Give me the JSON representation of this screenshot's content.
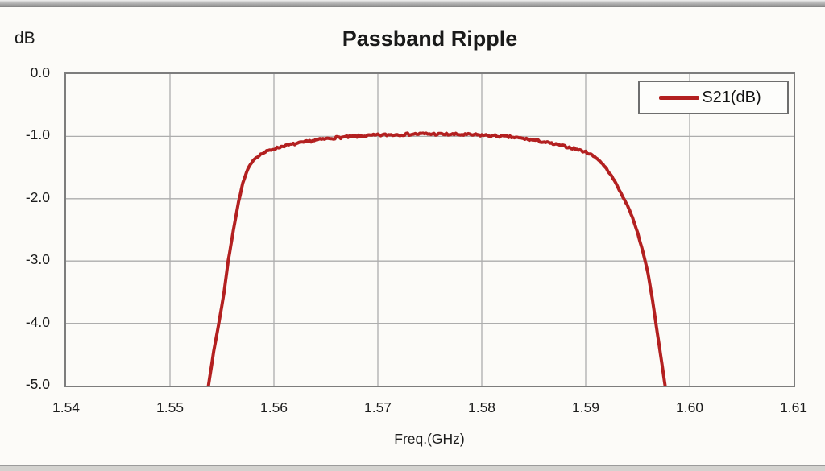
{
  "page": {
    "background": "#fcfbf8",
    "text_color": "#1f1f1f"
  },
  "chart_data": {
    "type": "line",
    "title": "Passband Ripple",
    "xlabel": "Freq.(GHz)",
    "ylabel": "dB",
    "xlim": [
      1.54,
      1.61
    ],
    "ylim": [
      -5.0,
      0.0
    ],
    "x_ticks": [
      "1.54",
      "1.55",
      "1.56",
      "1.57",
      "1.58",
      "1.59",
      "1.60",
      "1.61"
    ],
    "y_ticks": [
      "0.0",
      "-1.0",
      "-2.0",
      "-3.0",
      "-4.0",
      "-5.0"
    ],
    "grid": true,
    "grid_color": "#adadad",
    "plot_border_color": "#7d7d7d",
    "legend": {
      "position": "top-right",
      "entries": [
        {
          "label": "S21(dB)",
          "color": "#b32020"
        }
      ]
    },
    "series": [
      {
        "name": "S21(dB)",
        "color": "#b32020",
        "line_width": 4,
        "noise_db": 0.02,
        "points": [
          [
            1.5531,
            -5.6
          ],
          [
            1.5537,
            -5.0
          ],
          [
            1.5542,
            -4.45
          ],
          [
            1.5547,
            -4.0
          ],
          [
            1.5552,
            -3.5
          ],
          [
            1.5556,
            -3.0
          ],
          [
            1.5561,
            -2.5
          ],
          [
            1.5566,
            -2.05
          ],
          [
            1.557,
            -1.75
          ],
          [
            1.5575,
            -1.52
          ],
          [
            1.558,
            -1.38
          ],
          [
            1.5586,
            -1.3
          ],
          [
            1.5593,
            -1.24
          ],
          [
            1.56,
            -1.2
          ],
          [
            1.561,
            -1.15
          ],
          [
            1.562,
            -1.12
          ],
          [
            1.563,
            -1.09
          ],
          [
            1.564,
            -1.06
          ],
          [
            1.565,
            -1.04
          ],
          [
            1.566,
            -1.02
          ],
          [
            1.567,
            -1.01
          ],
          [
            1.568,
            -1.0
          ],
          [
            1.569,
            -0.99
          ],
          [
            1.57,
            -0.98
          ],
          [
            1.571,
            -0.975
          ],
          [
            1.572,
            -0.97
          ],
          [
            1.573,
            -0.965
          ],
          [
            1.5745,
            -0.96
          ],
          [
            1.576,
            -0.965
          ],
          [
            1.5775,
            -0.97
          ],
          [
            1.579,
            -0.975
          ],
          [
            1.58,
            -0.98
          ],
          [
            1.581,
            -0.99
          ],
          [
            1.582,
            -1.0
          ],
          [
            1.583,
            -1.015
          ],
          [
            1.584,
            -1.035
          ],
          [
            1.585,
            -1.06
          ],
          [
            1.586,
            -1.09
          ],
          [
            1.587,
            -1.125
          ],
          [
            1.588,
            -1.16
          ],
          [
            1.589,
            -1.2
          ],
          [
            1.59,
            -1.25
          ],
          [
            1.5905,
            -1.29
          ],
          [
            1.591,
            -1.34
          ],
          [
            1.5915,
            -1.42
          ],
          [
            1.592,
            -1.52
          ],
          [
            1.5925,
            -1.64
          ],
          [
            1.593,
            -1.78
          ],
          [
            1.5935,
            -1.95
          ],
          [
            1.594,
            -2.1
          ],
          [
            1.5945,
            -2.3
          ],
          [
            1.595,
            -2.55
          ],
          [
            1.5955,
            -2.85
          ],
          [
            1.596,
            -3.2
          ],
          [
            1.5964,
            -3.6
          ],
          [
            1.5968,
            -4.05
          ],
          [
            1.5972,
            -4.5
          ],
          [
            1.5976,
            -4.95
          ],
          [
            1.5979,
            -5.3
          ],
          [
            1.5982,
            -5.7
          ]
        ]
      }
    ]
  }
}
